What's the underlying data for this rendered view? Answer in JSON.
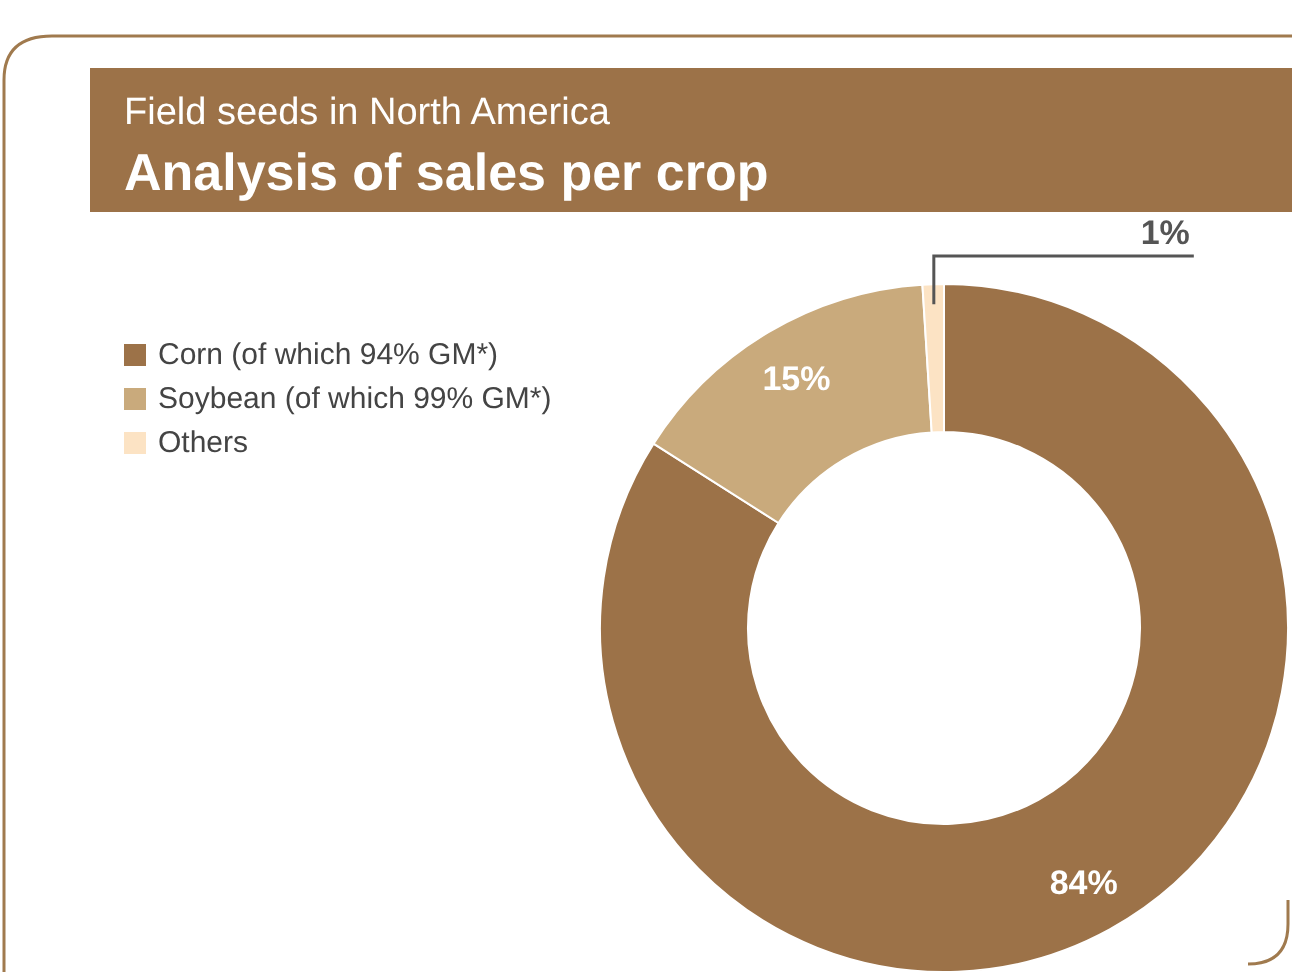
{
  "chart_data": {
    "type": "donut",
    "title": "Field seeds in North America",
    "subtitle": "Analysis of sales per crop",
    "categories": [
      "Corn (of which 94% GM*)",
      "Soybean (of which 99% GM*)",
      "Others"
    ],
    "values": [
      84,
      15,
      1
    ],
    "colors": [
      "#9c7248",
      "#c9aa7c",
      "#fce3c4"
    ],
    "value_labels": [
      "84%",
      "15%",
      "1%"
    ],
    "legend": "left"
  }
}
